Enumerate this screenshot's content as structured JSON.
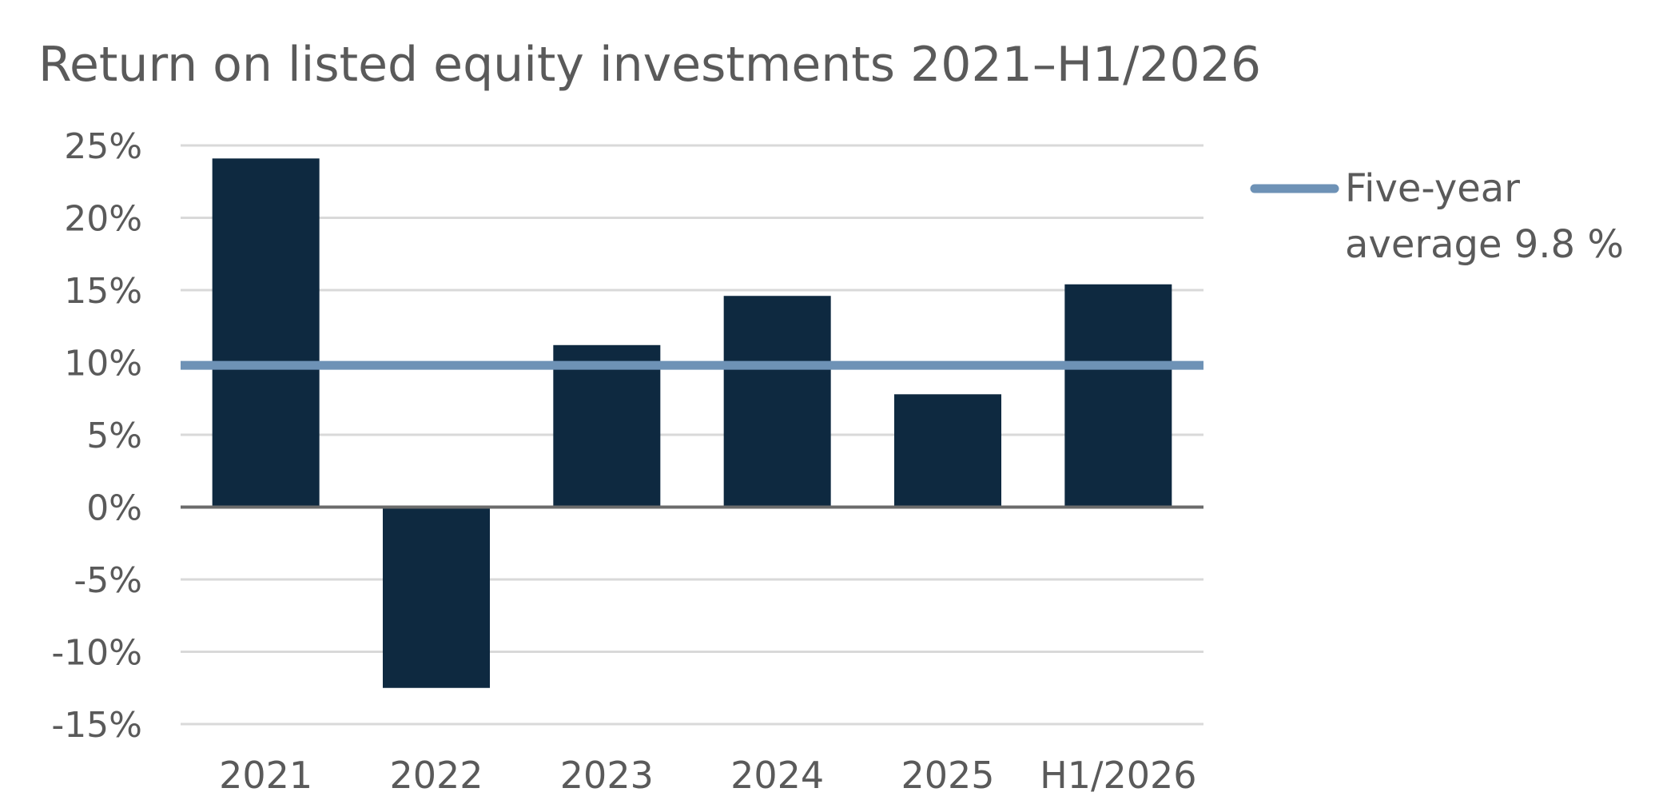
{
  "chart_data": {
    "type": "bar",
    "title": "Return on listed equity investments 2021–H1/2026",
    "categories": [
      "2021",
      "2022",
      "2023",
      "2024",
      "2025",
      "H1/2026"
    ],
    "values": [
      24.1,
      -12.5,
      11.2,
      14.6,
      7.8,
      15.4
    ],
    "unit": "%",
    "ylim": [
      -15,
      25
    ],
    "yticks": [
      25,
      20,
      15,
      10,
      5,
      0,
      -5,
      -10,
      -15
    ],
    "ytick_labels": [
      "25%",
      "20%",
      "15%",
      "10%",
      "5%",
      "0%",
      "-5%",
      "-10%",
      "-15%"
    ],
    "grid": true,
    "bar_color": "#0e2940",
    "reference_line": {
      "value": 9.8,
      "color": "#6e92b6",
      "legend_lines": [
        "Five-year",
        "average 9.8 %"
      ]
    },
    "legend_position": "right"
  }
}
